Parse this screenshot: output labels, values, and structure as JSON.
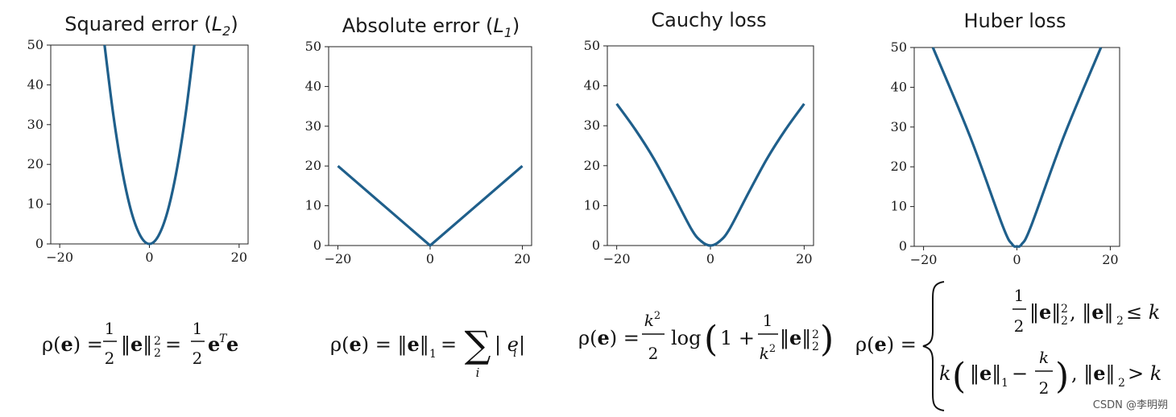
{
  "figure": {
    "watermark": "CSDN @李明朔"
  },
  "chart_data": [
    {
      "type": "line",
      "title": "Squared error (L2)",
      "title_text": "Squared error (",
      "title_var": "L",
      "title_sub": "2",
      "xlim": [
        -20,
        20
      ],
      "ylim": [
        0,
        50
      ],
      "xticks": [
        "−20",
        "0",
        "20"
      ],
      "yticks": [
        "0",
        "10",
        "20",
        "30",
        "40",
        "50"
      ],
      "x": [
        -10,
        -8,
        -6,
        -4,
        -2,
        0,
        2,
        4,
        6,
        8,
        10
      ],
      "y": [
        50,
        32,
        18,
        8,
        2,
        0,
        2,
        8,
        18,
        32,
        50
      ],
      "color": "#1f5f8b",
      "formula": "ρ(e) = ½‖e‖₂² = ½eᵀe"
    },
    {
      "type": "line",
      "title": "Absolute error (L1)",
      "title_text": "Absolute error (",
      "title_var": "L",
      "title_sub": "1",
      "xlim": [
        -20,
        20
      ],
      "ylim": [
        0,
        50
      ],
      "xticks": [
        "−20",
        "0",
        "20"
      ],
      "yticks": [
        "0",
        "10",
        "20",
        "30",
        "40",
        "50"
      ],
      "x": [
        -20,
        -10,
        0,
        10,
        20
      ],
      "y": [
        20,
        10,
        0,
        10,
        20
      ],
      "color": "#1f5f8b",
      "formula": "ρ(e) = ‖e‖₁ = Σᵢ |eᵢ|"
    },
    {
      "type": "line",
      "title": "Cauchy loss",
      "xlim": [
        -20,
        20
      ],
      "ylim": [
        0,
        50
      ],
      "xticks": [
        "−20",
        "0",
        "20"
      ],
      "yticks": [
        "0",
        "10",
        "20",
        "30",
        "40",
        "50"
      ],
      "x": [
        -20,
        -16,
        -12,
        -8,
        -4,
        -2,
        0,
        2,
        4,
        8,
        12,
        16,
        20
      ],
      "y": [
        35.5,
        29,
        21.6,
        12.9,
        4.0,
        1.1,
        0,
        1.1,
        4.0,
        12.9,
        21.6,
        29,
        35.5
      ],
      "color": "#1f5f8b",
      "formula": "ρ(e) = k²/2 log(1 + ‖e‖₂²/k²)"
    },
    {
      "type": "line",
      "title": "Huber loss",
      "xlim": [
        -20,
        20
      ],
      "ylim": [
        0,
        50
      ],
      "xticks": [
        "−20",
        "0",
        "20"
      ],
      "yticks": [
        "0",
        "10",
        "20",
        "30",
        "40",
        "50"
      ],
      "x": [
        -18,
        -10,
        -3,
        -1,
        0,
        1,
        3,
        10,
        18
      ],
      "y": [
        50,
        27.5,
        5.0,
        0.5,
        0,
        0.5,
        5.0,
        27.5,
        50
      ],
      "color": "#1f5f8b",
      "formula": "ρ(e) = { ½‖e‖₂², ‖e‖₂ ≤ k ; k(‖e‖₁ − k/2), ‖e‖₂ > k }"
    }
  ]
}
